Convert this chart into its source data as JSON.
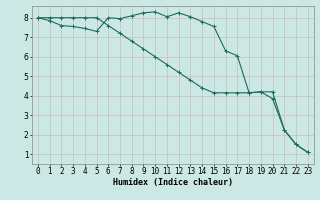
{
  "title": "",
  "xlabel": "Humidex (Indice chaleur)",
  "ylabel": "",
  "bg_color": "#cce8e4",
  "grid_color": "#b0d4cc",
  "line_color": "#1a6b5e",
  "xlim": [
    -0.5,
    23.5
  ],
  "ylim": [
    0.5,
    8.6
  ],
  "xticks": [
    0,
    1,
    2,
    3,
    4,
    5,
    6,
    7,
    8,
    9,
    10,
    11,
    12,
    13,
    14,
    15,
    16,
    17,
    18,
    19,
    20,
    21,
    22,
    23
  ],
  "yticks": [
    1,
    2,
    3,
    4,
    5,
    6,
    7,
    8
  ],
  "line1_x": [
    0,
    1,
    2,
    3,
    4,
    5,
    6,
    7,
    8,
    9,
    10,
    11,
    12,
    13,
    14,
    15,
    16,
    17,
    18,
    19,
    20,
    21,
    22,
    23
  ],
  "line1_y": [
    8.0,
    7.85,
    7.6,
    7.55,
    7.45,
    7.3,
    8.0,
    7.95,
    8.1,
    8.25,
    8.3,
    8.05,
    8.25,
    8.05,
    7.8,
    7.55,
    6.3,
    6.05,
    4.15,
    4.2,
    3.85,
    2.25,
    1.5,
    1.1
  ],
  "line2_x": [
    0,
    1,
    2,
    3,
    4,
    5,
    6,
    7,
    8,
    9,
    10,
    11,
    12,
    13,
    14,
    15,
    16,
    17,
    18,
    19,
    20,
    21,
    22,
    23
  ],
  "line2_y": [
    8.0,
    8.0,
    8.0,
    8.0,
    8.0,
    8.0,
    7.6,
    7.2,
    6.8,
    6.4,
    6.0,
    5.6,
    5.2,
    4.8,
    4.4,
    4.15,
    4.15,
    4.15,
    4.15,
    4.2,
    4.2,
    2.25,
    1.5,
    1.1
  ],
  "tick_fontsize": 5.5,
  "xlabel_fontsize": 6.0,
  "marker_size": 2.5,
  "line_width": 0.8
}
